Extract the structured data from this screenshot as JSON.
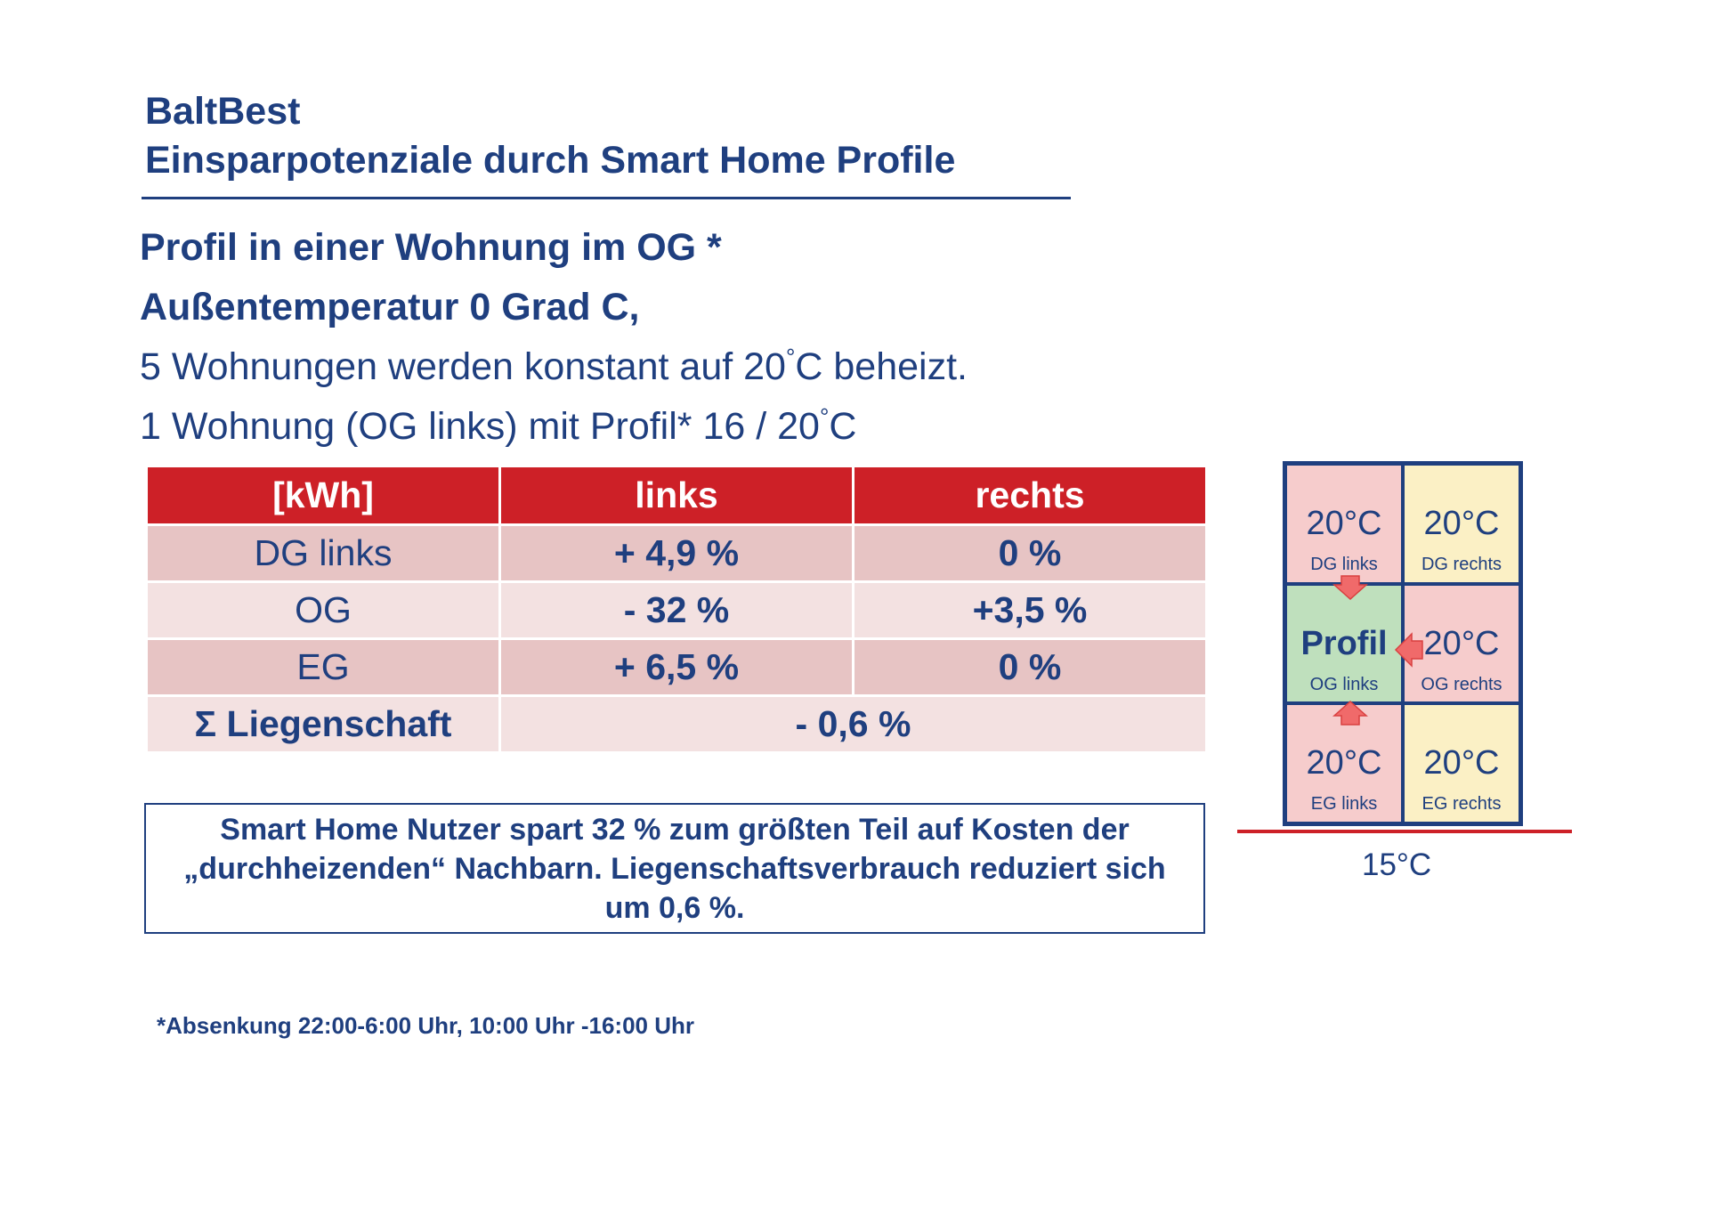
{
  "title": {
    "line1": "BaltBest",
    "line2": "Einsparpotenziale durch Smart Home Profile"
  },
  "subtitle": {
    "line1": "Profil in einer Wohnung im OG *",
    "line2": "Außentemperatur 0 Grad C,",
    "line3_before": "5 Wohnungen werden konstant auf 20",
    "line3_deg": "°",
    "line3_after": "C beheizt.",
    "line4_before": "1 Wohnung (OG links) mit Profil* 16 / 20",
    "line4_deg": "°",
    "line4_after": "C"
  },
  "table": {
    "headers": [
      "[kWh]",
      "links",
      "rechts"
    ],
    "rows": [
      {
        "label": "DG links",
        "links": "+ 4,9 %",
        "rechts": "0 %"
      },
      {
        "label": "OG",
        "links": "- 32 %",
        "rechts": "+3,5 %"
      },
      {
        "label": "EG",
        "links": "+ 6,5 %",
        "rechts": "0 %"
      }
    ],
    "sum": {
      "label": "Σ Liegenschaft",
      "value": "- 0,6 %"
    }
  },
  "summary": "Smart Home Nutzer spart 32 % zum größten Teil auf Kosten der „durchheizenden“ Nachbarn. Liegenschaftsverbrauch reduziert sich um 0,6 %.",
  "footnote": "*Absenkung 22:00-6:00 Uhr, 10:00 Uhr -16:00 Uhr",
  "building": {
    "cells": [
      {
        "temp": "20°C",
        "name": "DG links"
      },
      {
        "temp": "20°C",
        "name": "DG rechts"
      },
      {
        "temp": "Profil",
        "name": "OG links"
      },
      {
        "temp": "20°C",
        "name": "OG rechts"
      },
      {
        "temp": "20°C",
        "name": "EG links"
      },
      {
        "temp": "20°C",
        "name": "EG rechts"
      }
    ],
    "ground_temp": "15°C"
  },
  "colors": {
    "text_blue": "#1f3f7f",
    "header_red": "#cd2027",
    "row_dark": "#e7c4c4",
    "row_light": "#f3e1e1",
    "cell_pink": "#f6cccc",
    "cell_yellow": "#fbf0c5",
    "cell_green": "#bfe0bd",
    "arrow": "#f06a6a"
  }
}
